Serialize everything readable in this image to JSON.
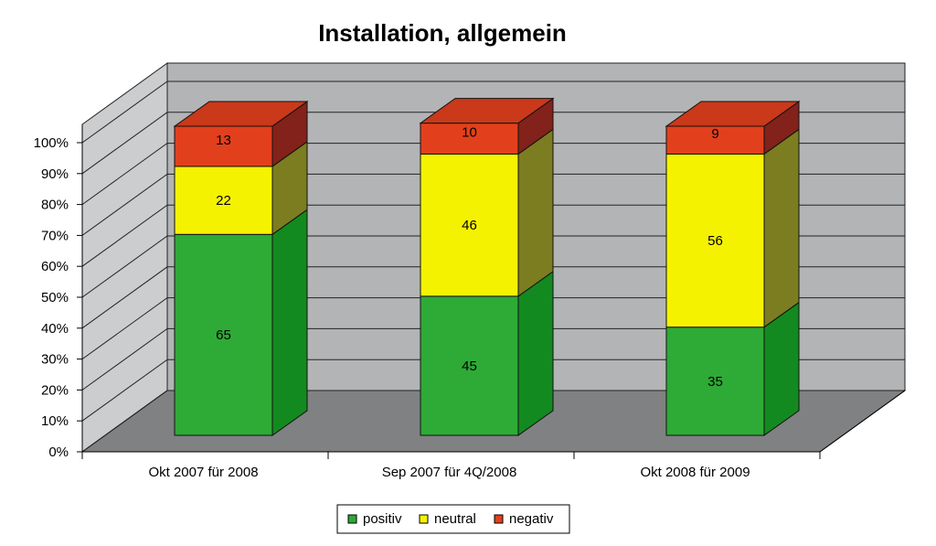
{
  "chart_data": {
    "type": "bar",
    "stacked": true,
    "style": "3d",
    "title": "Installation, allgemein",
    "xlabel": "",
    "ylabel": "",
    "ylim": [
      0,
      100
    ],
    "y_ticks": [
      "0%",
      "10%",
      "20%",
      "30%",
      "40%",
      "50%",
      "60%",
      "70%",
      "80%",
      "90%",
      "100%"
    ],
    "categories": [
      "Okt 2007 für 2008",
      "Sep 2007 für 4Q/2008",
      "Okt 2008 für 2009"
    ],
    "series": [
      {
        "name": "positiv",
        "values": [
          65,
          45,
          35
        ],
        "color": "#2eaa36",
        "side_color": "#138a1f",
        "top_color": "#3ec640"
      },
      {
        "name": "neutral",
        "values": [
          22,
          46,
          56
        ],
        "color": "#f5f200",
        "side_color": "#7b7d20",
        "top_color": "#f9f650"
      },
      {
        "name": "negativ",
        "values": [
          13,
          10,
          9
        ],
        "color": "#e2401c",
        "side_color": "#82221a",
        "top_color": "#c9391a"
      }
    ],
    "legend_position": "bottom",
    "grid": true,
    "colors": {
      "back_wall": "#b2b4b6",
      "floor": "#7f8183",
      "side_wall": "#cbcdcf"
    }
  }
}
